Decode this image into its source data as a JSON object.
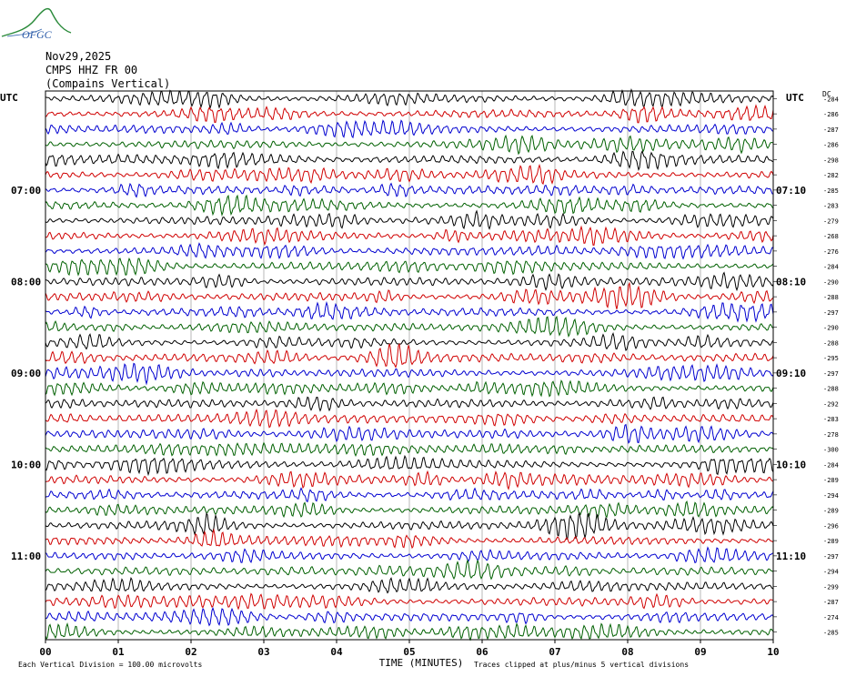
{
  "logo": {
    "text": "OFGC"
  },
  "header": {
    "date": "Nov29,2025",
    "station": "CMPS HHZ FR 00",
    "location": "(Compains Vertical)"
  },
  "chart_data": {
    "type": "line",
    "left_label": "UTC",
    "right_label": "UTC",
    "dc_label": "DC",
    "xlabel": "TIME (MINUTES)",
    "x_ticks": [
      "00",
      "01",
      "02",
      "03",
      "04",
      "05",
      "06",
      "07",
      "08",
      "09",
      "10"
    ],
    "xlim": [
      0,
      10
    ],
    "left_hour_labels": [
      {
        "row": 6,
        "text": "07:00"
      },
      {
        "row": 12,
        "text": "08:00"
      },
      {
        "row": 18,
        "text": "09:00"
      },
      {
        "row": 24,
        "text": "10:00"
      },
      {
        "row": 30,
        "text": "11:00"
      }
    ],
    "right_hour_labels": [
      {
        "row": 6,
        "text": "07:10"
      },
      {
        "row": 12,
        "text": "08:10"
      },
      {
        "row": 18,
        "text": "09:10"
      },
      {
        "row": 24,
        "text": "10:10"
      },
      {
        "row": 30,
        "text": "11:10"
      }
    ],
    "trace_colors": [
      "#000000",
      "#d00000",
      "#0000d0",
      "#006000"
    ],
    "dc_offsets": [
      "-284",
      "-286",
      "-287",
      "-286",
      "-298",
      "-282",
      "-285",
      "-283",
      "-279",
      "-268",
      "-276",
      "-284",
      "-290",
      "-288",
      "-297",
      "-290",
      "-288",
      "-295",
      "-297",
      "-288",
      "-292",
      "-283",
      "-278",
      "-300",
      "-284",
      "-289",
      "-294",
      "-289",
      "-296",
      "-289",
      "-297",
      "-294",
      "-299",
      "-287",
      "-274",
      "-285"
    ],
    "footer_left": "Each Vertical Division =  100.00 microvolts",
    "footer_right": "Traces clipped at plus/minus 5 vertical divisions"
  }
}
